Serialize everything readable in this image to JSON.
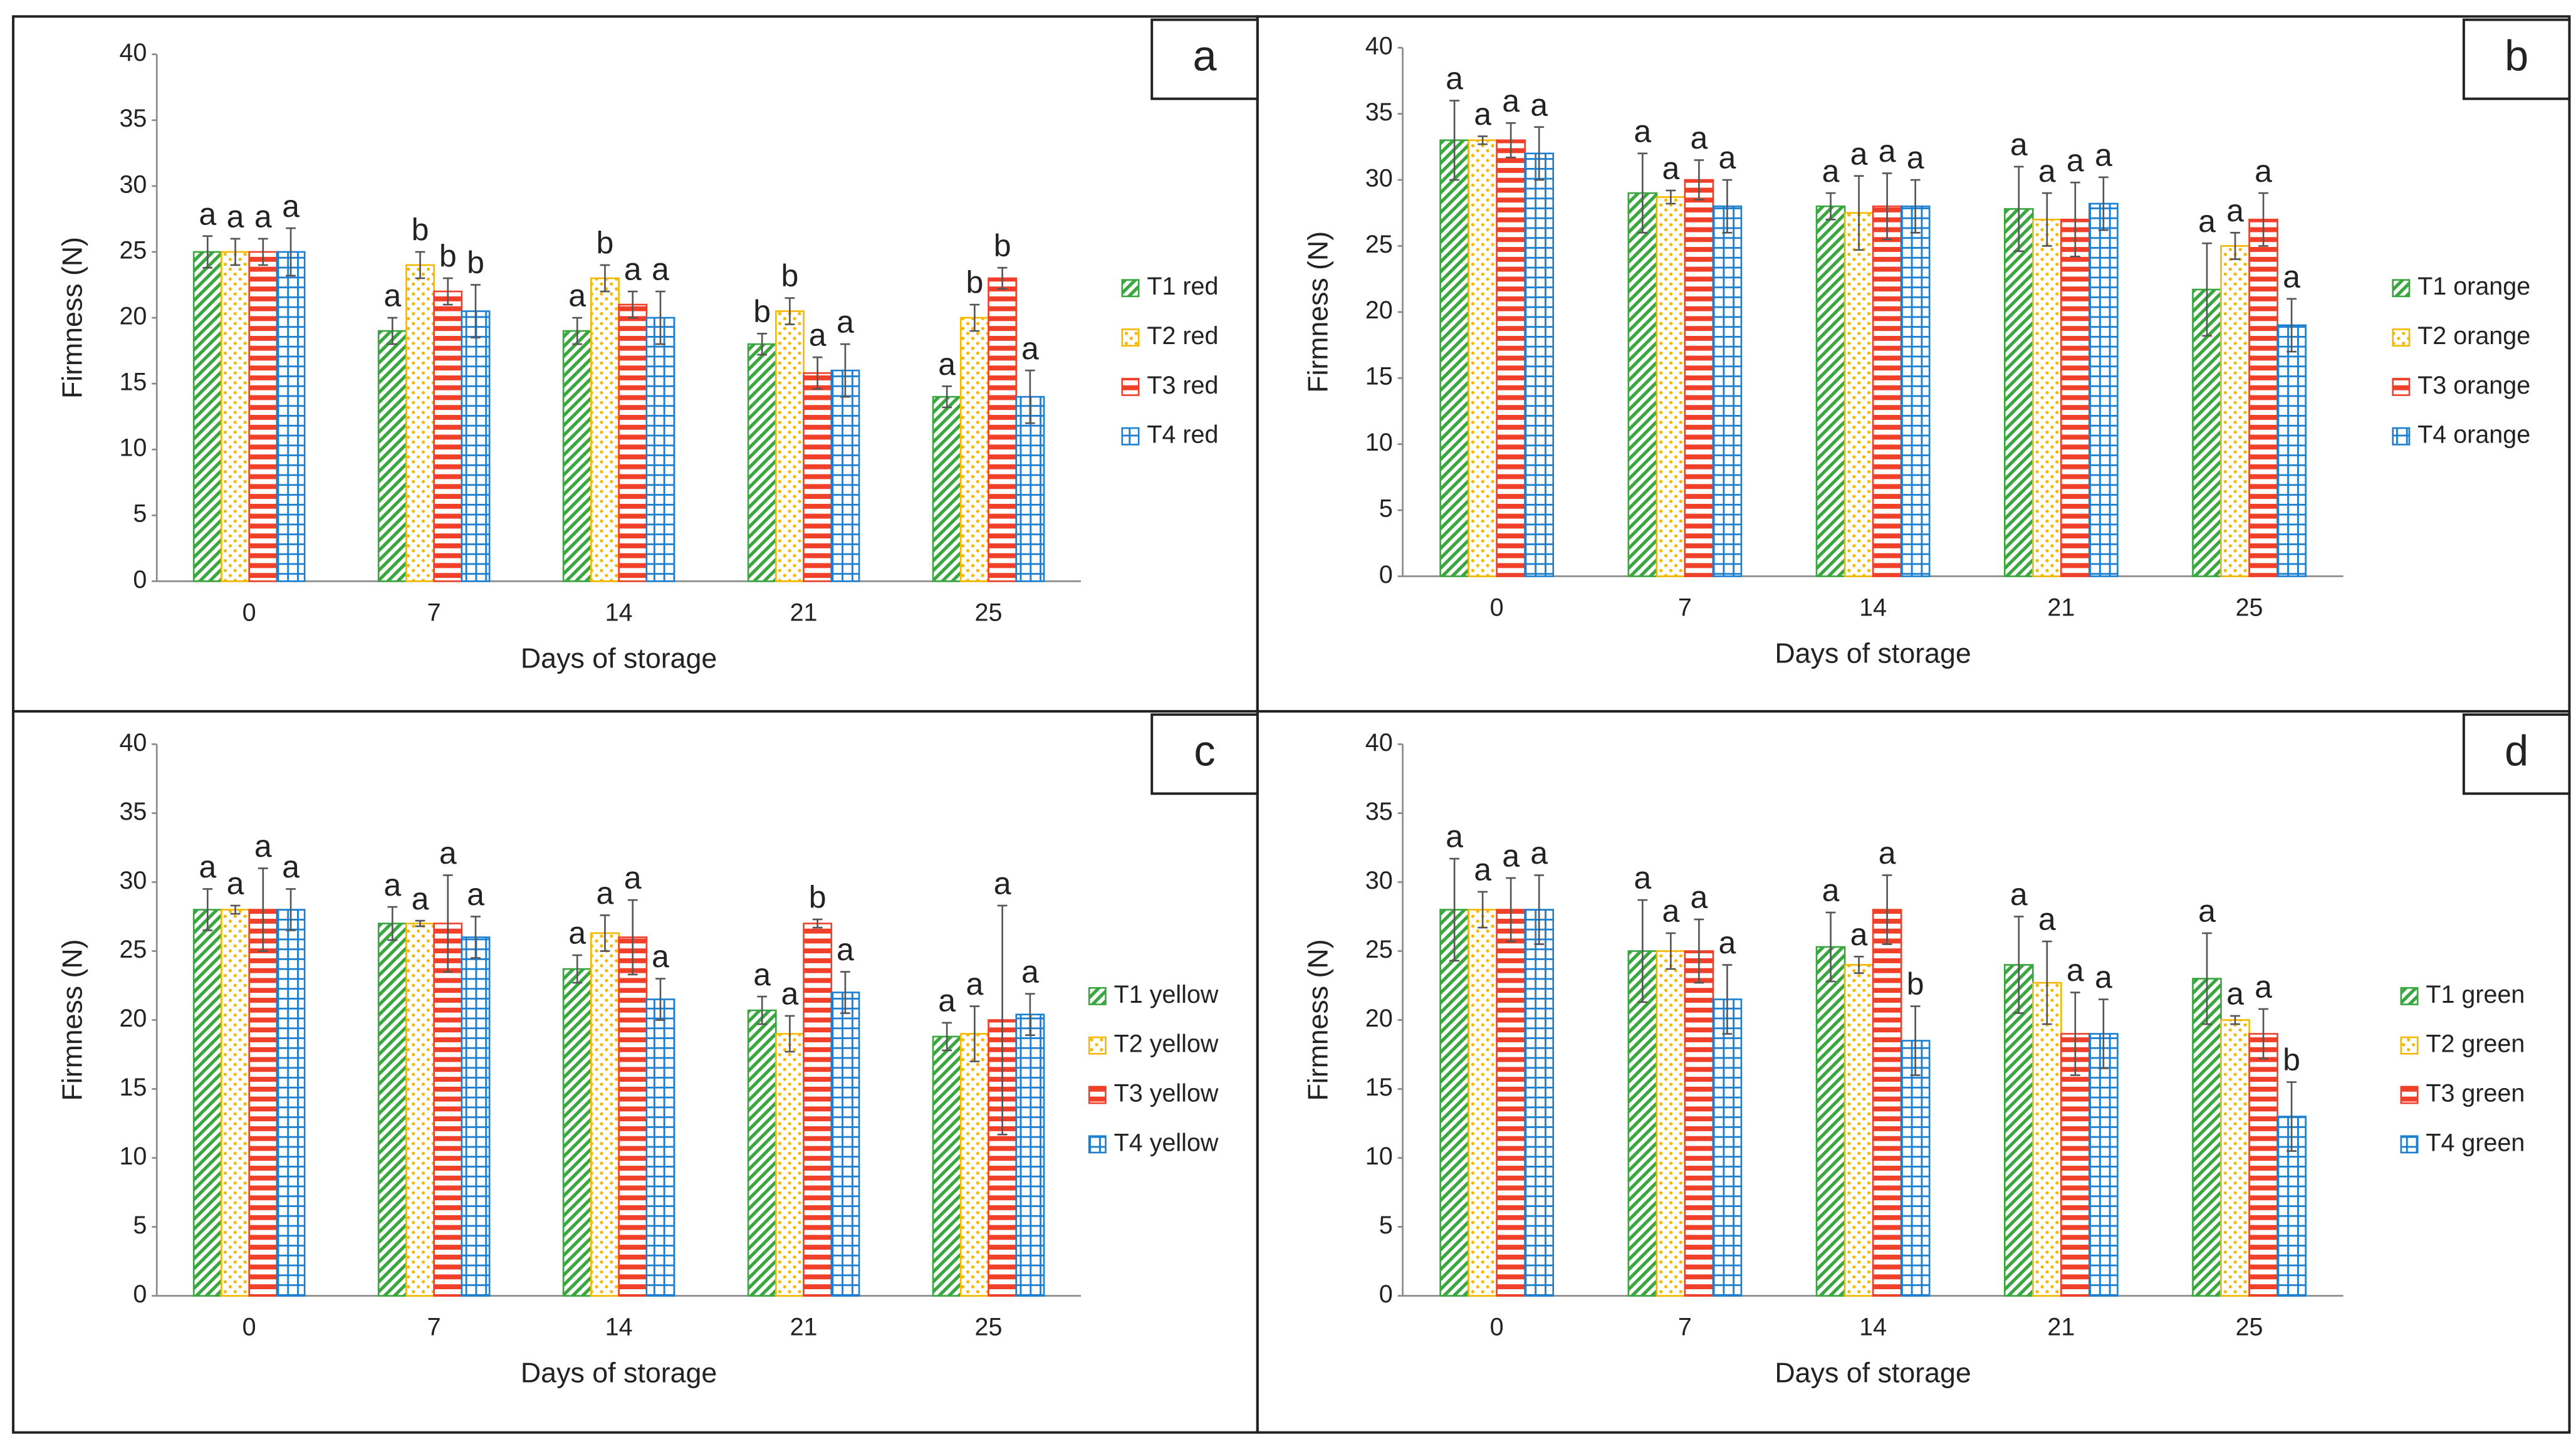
{
  "chart_data": [
    {
      "type": "bar",
      "panel_label": "a",
      "y_label": "Firmness (N)",
      "x_label": "Days of storage",
      "categories": [
        "0",
        "7",
        "14",
        "21",
        "25"
      ],
      "ylim": [
        0,
        40
      ],
      "yticks": [
        0,
        5,
        10,
        15,
        20,
        25,
        30,
        35,
        40
      ],
      "series": [
        {
          "name": "T1 red",
          "color": "#3aa640",
          "values": [
            25,
            19,
            19,
            18,
            14
          ],
          "errors": [
            1.2,
            1,
            1,
            0.8,
            0.8
          ],
          "letters": [
            "a",
            "a",
            "a",
            "b",
            "a"
          ]
        },
        {
          "name": "T2 red",
          "color": "#f5b800",
          "values": [
            25,
            24,
            23,
            20.5,
            20
          ],
          "errors": [
            1,
            1,
            1,
            1,
            1
          ],
          "letters": [
            "a",
            "b",
            "b",
            "b",
            "b"
          ]
        },
        {
          "name": "T3 red",
          "color": "#f0402a",
          "values": [
            25,
            22,
            21,
            15.8,
            23
          ],
          "errors": [
            1,
            1,
            1,
            1.2,
            0.8
          ],
          "letters": [
            "a",
            "b",
            "a",
            "a",
            "b"
          ]
        },
        {
          "name": "T4 red",
          "color": "#1d7fd0",
          "values": [
            25,
            20.5,
            20,
            16,
            14
          ],
          "errors": [
            1.8,
            2,
            2,
            2,
            2
          ],
          "letters": [
            "a",
            "b",
            "a",
            "a",
            "a"
          ]
        }
      ]
    },
    {
      "type": "bar",
      "panel_label": "b",
      "y_label": "Firmness (N)",
      "x_label": "Days of storage",
      "categories": [
        "0",
        "7",
        "14",
        "21",
        "25"
      ],
      "ylim": [
        0,
        40
      ],
      "yticks": [
        0,
        5,
        10,
        15,
        20,
        25,
        30,
        35,
        40
      ],
      "series": [
        {
          "name": "T1 orange",
          "color": "#3aa640",
          "values": [
            33,
            29,
            28,
            27.8,
            21.7
          ],
          "errors": [
            3,
            3,
            1,
            3.2,
            3.5
          ],
          "letters": [
            "a",
            "a",
            "a",
            "a",
            "a"
          ]
        },
        {
          "name": "T2 orange",
          "color": "#f5b800",
          "values": [
            33,
            28.7,
            27.5,
            27,
            25
          ],
          "errors": [
            0.3,
            0.5,
            2.8,
            2,
            1
          ],
          "letters": [
            "a",
            "a",
            "a",
            "a",
            "a"
          ]
        },
        {
          "name": "T3 orange",
          "color": "#f0402a",
          "values": [
            33,
            30,
            28,
            27,
            27
          ],
          "errors": [
            1.3,
            1.5,
            2.5,
            2.8,
            2
          ],
          "letters": [
            "a",
            "a",
            "a",
            "a",
            "a"
          ]
        },
        {
          "name": "T4 orange",
          "color": "#1d7fd0",
          "values": [
            32,
            28,
            28,
            28.2,
            19
          ],
          "errors": [
            2,
            2,
            2,
            2,
            2
          ],
          "letters": [
            "a",
            "a",
            "a",
            "a",
            "a"
          ]
        }
      ]
    },
    {
      "type": "bar",
      "panel_label": "c",
      "y_label": "Firmness (N)",
      "x_label": "Days of storage",
      "categories": [
        "0",
        "7",
        "14",
        "21",
        "25"
      ],
      "ylim": [
        0,
        40
      ],
      "yticks": [
        0,
        5,
        10,
        15,
        20,
        25,
        30,
        35,
        40
      ],
      "series": [
        {
          "name": "T1 yellow",
          "color": "#3aa640",
          "values": [
            28,
            27,
            23.7,
            20.7,
            18.8
          ],
          "errors": [
            1.5,
            1.2,
            1,
            1,
            1
          ],
          "letters": [
            "a",
            "a",
            "a",
            "a",
            "a"
          ]
        },
        {
          "name": "T2 yellow",
          "color": "#f5b800",
          "values": [
            28,
            27,
            26.3,
            19,
            19
          ],
          "errors": [
            0.3,
            0.2,
            1.3,
            1.3,
            2
          ],
          "letters": [
            "a",
            "a",
            "a",
            "a",
            "a"
          ]
        },
        {
          "name": "T3 yellow",
          "color": "#f0402a",
          "values": [
            28,
            27,
            26,
            27,
            20
          ],
          "errors": [
            3,
            3.5,
            2.7,
            0.3,
            8.3
          ],
          "letters": [
            "a",
            "a",
            "a",
            "b",
            "a"
          ]
        },
        {
          "name": "T4 yellow",
          "color": "#1d7fd0",
          "values": [
            28,
            26,
            21.5,
            22,
            20.4
          ],
          "errors": [
            1.5,
            1.5,
            1.5,
            1.5,
            1.5
          ],
          "letters": [
            "a",
            "a",
            "a",
            "a",
            "a"
          ]
        }
      ]
    },
    {
      "type": "bar",
      "panel_label": "d",
      "y_label": "Firmness (N)",
      "x_label": "Days of storage",
      "categories": [
        "0",
        "7",
        "14",
        "21",
        "25"
      ],
      "ylim": [
        0,
        40
      ],
      "yticks": [
        0,
        5,
        10,
        15,
        20,
        25,
        30,
        35,
        40
      ],
      "series": [
        {
          "name": "T1 green",
          "color": "#3aa640",
          "values": [
            28,
            25,
            25.3,
            24,
            23
          ],
          "errors": [
            3.7,
            3.7,
            2.5,
            3.5,
            3.3
          ],
          "letters": [
            "a",
            "a",
            "a",
            "a",
            "a"
          ]
        },
        {
          "name": "T2 green",
          "color": "#f5b800",
          "values": [
            28,
            25,
            24,
            22.7,
            20
          ],
          "errors": [
            1.3,
            1.3,
            0.6,
            3,
            0.3
          ],
          "letters": [
            "a",
            "a",
            "a",
            "a",
            "a"
          ]
        },
        {
          "name": "T3 green",
          "color": "#f0402a",
          "values": [
            28,
            25,
            28,
            19,
            19
          ],
          "errors": [
            2.3,
            2.3,
            2.5,
            3,
            1.8
          ],
          "letters": [
            "a",
            "a",
            "a",
            "a",
            "a"
          ]
        },
        {
          "name": "T4 green",
          "color": "#1d7fd0",
          "values": [
            28,
            21.5,
            18.5,
            19,
            13
          ],
          "errors": [
            2.5,
            2.5,
            2.5,
            2.5,
            2.5
          ],
          "letters": [
            "a",
            "a",
            "b",
            "a",
            "b"
          ]
        }
      ]
    }
  ]
}
